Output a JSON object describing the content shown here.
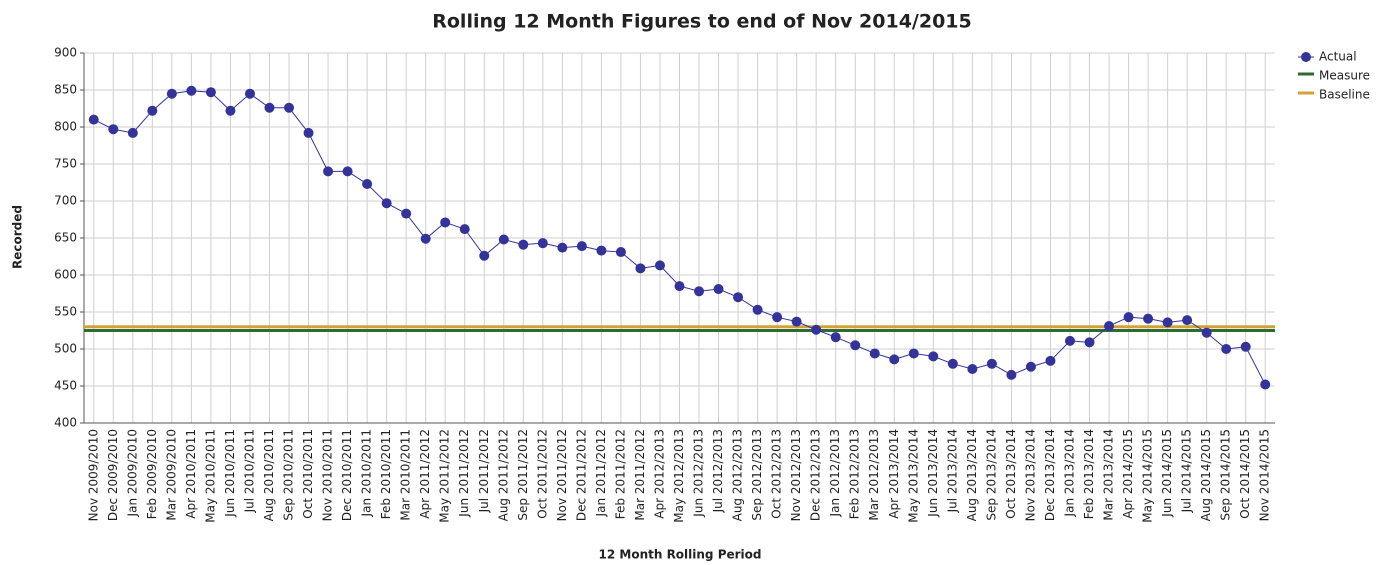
{
  "chart_data": {
    "type": "line",
    "title": "Rolling 12 Month Figures to end of Nov 2014/2015",
    "x_label": "12 Month Rolling Period",
    "y_label": "Recorded",
    "categories": [
      "Nov 2009/2010",
      "Dec 2009/2010",
      "Jan 2009/2010",
      "Feb 2009/2010",
      "Mar 2009/2010",
      "Apr 2010/2011",
      "May 2010/2011",
      "Jun 2010/2011",
      "Jul 2010/2011",
      "Aug 2010/2011",
      "Sep 2010/2011",
      "Oct 2010/2011",
      "Nov 2010/2011",
      "Dec 2010/2011",
      "Jan 2010/2011",
      "Feb 2010/2011",
      "Mar 2010/2011",
      "Apr 2011/2012",
      "May 2011/2012",
      "Jun 2011/2012",
      "Jul 2011/2012",
      "Aug 2011/2012",
      "Sep 2011/2012",
      "Oct 2011/2012",
      "Nov 2011/2012",
      "Dec 2011/2012",
      "Jan 2011/2012",
      "Feb 2011/2012",
      "Mar 2011/2012",
      "Apr 2012/2013",
      "May 2012/2013",
      "Jun 2012/2013",
      "Jul 2012/2013",
      "Aug 2012/2013",
      "Sep 2012/2013",
      "Oct 2012/2013",
      "Nov 2012/2013",
      "Dec 2012/2013",
      "Jan 2012/2013",
      "Feb 2012/2013",
      "Mar 2012/2013",
      "Apr 2013/2014",
      "May 2013/2014",
      "Jun 2013/2014",
      "Jul 2013/2014",
      "Aug 2013/2014",
      "Sep 2013/2014",
      "Oct 2013/2014",
      "Nov 2013/2014",
      "Dec 2013/2014",
      "Jan 2013/2014",
      "Feb 2013/2014",
      "Mar 2013/2014",
      "Apr 2014/2015",
      "May 2014/2015",
      "Jun 2014/2015",
      "Jul 2014/2015",
      "Aug 2014/2015",
      "Sep 2014/2015",
      "Oct 2014/2015",
      "Nov 2014/2015"
    ],
    "series": [
      {
        "name": "Actual",
        "color": "#33339a",
        "values": [
          810,
          797,
          792,
          822,
          845,
          849,
          847,
          822,
          845,
          826,
          826,
          792,
          740,
          740,
          723,
          697,
          683,
          649,
          671,
          662,
          626,
          648,
          641,
          643,
          637,
          639,
          633,
          631,
          609,
          613,
          585,
          578,
          581,
          570,
          553,
          543,
          537,
          526,
          516,
          505,
          494,
          486,
          494,
          490,
          480,
          473,
          480,
          465,
          476,
          484,
          511,
          509,
          531,
          543,
          541,
          536,
          539,
          522,
          500,
          503,
          452
        ]
      }
    ],
    "reference_lines": [
      {
        "name": "Measure",
        "color": "#2e6b2e",
        "value": 525
      },
      {
        "name": "Baseline",
        "color": "#d4a03a",
        "value": 530
      }
    ],
    "ylim": [
      400,
      900
    ],
    "yticks": [
      400,
      450,
      500,
      550,
      600,
      650,
      700,
      750,
      800,
      850,
      900
    ],
    "grid": true,
    "legend": "top-right"
  }
}
